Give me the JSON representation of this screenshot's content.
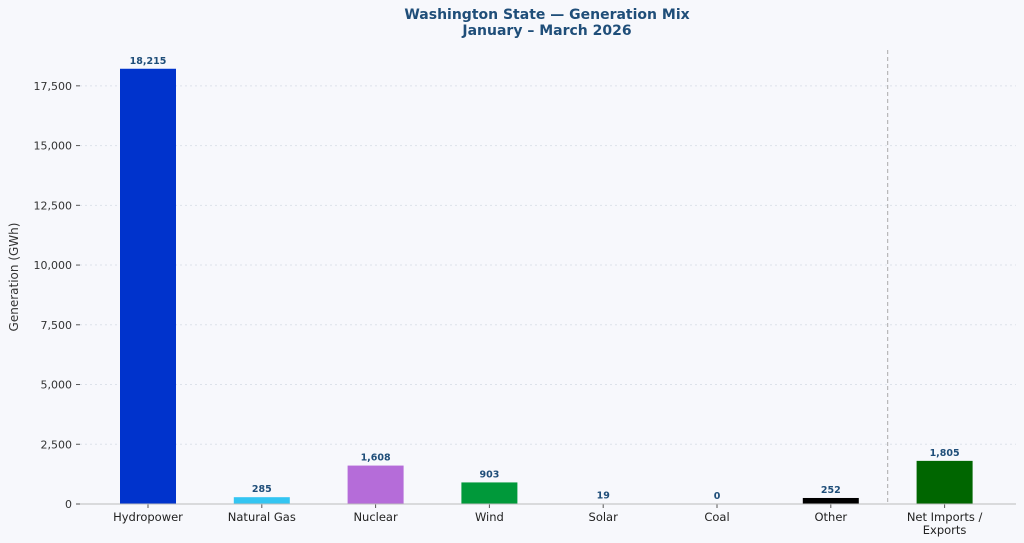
{
  "chart_data": {
    "type": "bar",
    "title": "Washington State — Generation Mix",
    "subtitle": "January – March 2026",
    "xlabel": "",
    "ylabel": "Generation (GWh)",
    "ylim": [
      0,
      19000
    ],
    "yticks": [
      0,
      2500,
      5000,
      7500,
      10000,
      12500,
      15000,
      17500
    ],
    "ytick_labels": [
      "0",
      "2,500",
      "5,000",
      "7,500",
      "10,000",
      "12,500",
      "15,000",
      "17,500"
    ],
    "grid": "horizontal dotted",
    "categories": [
      "Hydropower",
      "Natural Gas",
      "Nuclear",
      "Wind",
      "Solar",
      "Coal",
      "Other",
      "Net Imports / Exports"
    ],
    "category_lines": [
      [
        "Hydropower"
      ],
      [
        "Natural Gas"
      ],
      [
        "Nuclear"
      ],
      [
        "Wind"
      ],
      [
        "Solar"
      ],
      [
        "Coal"
      ],
      [
        "Other"
      ],
      [
        "Net Imports /",
        "Exports"
      ]
    ],
    "values": [
      18215,
      285,
      1608,
      903,
      19,
      0,
      252,
      1805
    ],
    "value_labels": [
      "18,215",
      "285",
      "1,608",
      "903",
      "19",
      "0",
      "252",
      "1,805"
    ],
    "colors": [
      "#0033cc",
      "#33c5f2",
      "#b56cd9",
      "#00993a",
      "#f2c84b",
      "#8b5a2b",
      "#000000",
      "#006600"
    ],
    "separator_before_index": 7
  }
}
